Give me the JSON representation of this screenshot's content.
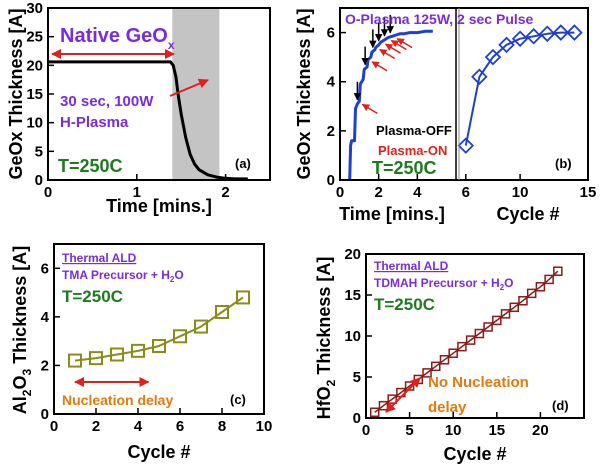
{
  "chart_data": [
    {
      "id": "a",
      "type": "line",
      "panel_label": "(a)",
      "xlabel": "Time [mins.]",
      "ylabel": "GeOx Thickness [A]",
      "xlim": [
        0,
        2.5
      ],
      "ylim": [
        0,
        30
      ],
      "xticks": [
        "0",
        "1",
        "2"
      ],
      "yticks": [
        "0",
        "5",
        "10",
        "15",
        "20",
        "25",
        "30"
      ],
      "shaded_region": [
        1.4,
        1.93
      ],
      "series": [
        {
          "name": "",
          "color": "#000000",
          "x": [
            0,
            0.3,
            0.6,
            0.9,
            1.2,
            1.38,
            1.41,
            1.44,
            1.47,
            1.5,
            1.55,
            1.6,
            1.65,
            1.7,
            1.8,
            1.9,
            2.0,
            2.1,
            2.25
          ],
          "y": [
            20.6,
            20.6,
            20.6,
            20.6,
            20.6,
            20.6,
            20.0,
            18.0,
            14.5,
            11.5,
            7.5,
            4.5,
            2.8,
            1.8,
            0.9,
            0.5,
            0.3,
            0.2,
            0.2
          ]
        }
      ],
      "annotations": {
        "native_main": "Native GeO",
        "native_sub": "x",
        "plasma_line1": "30 sec, 100W",
        "plasma_line2": "H-Plasma",
        "temp": "T=250C"
      }
    },
    {
      "id": "b",
      "type": "line",
      "panel_label": "(b)",
      "title": "O-Plasma 125W, 2 sec Pulse",
      "ylabel": "GeOx Thickness [A]",
      "ylim": [
        0,
        7
      ],
      "yticks": [
        "0",
        "2",
        "4",
        "6"
      ],
      "left": {
        "xlabel": "Time [mins.]",
        "xlim": [
          0,
          6
        ],
        "xticks": [
          "0",
          "2",
          "4",
          "6"
        ],
        "series": [
          {
            "name": "",
            "color": "#1f3fd1",
            "x": [
              0.5,
              0.55,
              0.6,
              0.75,
              0.8,
              0.9,
              1.0,
              1.05,
              1.2,
              1.25,
              1.4,
              1.45,
              1.6,
              1.65,
              1.8,
              1.85,
              2.0,
              2.1,
              2.3,
              2.5,
              2.7,
              2.9,
              3.1,
              3.3,
              3.6,
              4.0,
              4.4,
              4.8
            ],
            "y": [
              0.0,
              1.4,
              1.6,
              1.6,
              2.9,
              3.1,
              3.2,
              3.9,
              4.1,
              4.5,
              4.6,
              4.9,
              5.0,
              5.2,
              5.3,
              5.4,
              5.5,
              5.6,
              5.7,
              5.8,
              5.85,
              5.9,
              5.95,
              5.95,
              6.0,
              6.0,
              6.05,
              6.05
            ]
          }
        ],
        "annotations": {
          "plasma_off": "Plasma-OFF",
          "plasma_on": "Plasma-ON",
          "temp": "T=250C",
          "off_arrow_times": [
            0.9,
            1.3,
            1.7,
            2.0,
            2.3,
            2.6
          ],
          "on_arrow_times": [
            1.0,
            1.5,
            1.9,
            2.2,
            2.5,
            2.8
          ]
        }
      },
      "right": {
        "xlabel": "Cycle #",
        "xlim": [
          5.5,
          15
        ],
        "xticks": [
          "6",
          "10",
          "15"
        ],
        "series": [
          {
            "name": "",
            "color": "#1f3fd1",
            "x": [
              6,
              7,
              8,
              9,
              10,
              11,
              12,
              13,
              14
            ],
            "y": [
              1.4,
              4.2,
              5.0,
              5.5,
              5.75,
              5.85,
              5.95,
              6.0,
              6.0
            ]
          }
        ]
      }
    },
    {
      "id": "c",
      "type": "line",
      "panel_label": "(c)",
      "xlabel": "Cycle #",
      "ylabel_main": "Al",
      "ylabel_sub1": "2",
      "ylabel_mid": "O",
      "ylabel_sub2": "3",
      "ylabel_tail": " Thickness [A]",
      "xlim": [
        0,
        10
      ],
      "ylim": [
        0,
        7
      ],
      "xticks": [
        "0",
        "2",
        "4",
        "6",
        "8",
        "10"
      ],
      "yticks": [
        "0",
        "2",
        "4",
        "6"
      ],
      "series": [
        {
          "name": "",
          "color": "#8b8b1a",
          "x": [
            1,
            2,
            3,
            4,
            5,
            6,
            7,
            8,
            9
          ],
          "y": [
            2.2,
            2.3,
            2.45,
            2.6,
            2.8,
            3.2,
            3.6,
            4.2,
            4.8
          ]
        }
      ],
      "annotations": {
        "label1": "Thermal ALD",
        "label2": "TMA Precursor + H",
        "label2_sub": "2",
        "label2_tail": "O",
        "temp": "T=250C",
        "delay": "Nucleation delay",
        "delay_range": [
          1,
          4.5
        ]
      }
    },
    {
      "id": "d",
      "type": "line",
      "panel_label": "(d)",
      "xlabel": "Cycle #",
      "ylabel_main": "HfO",
      "ylabel_sub": "2",
      "ylabel_tail": " Thickness [A]",
      "xlim": [
        0,
        25
      ],
      "ylim": [
        0,
        20
      ],
      "xticks": [
        "0",
        "5",
        "10",
        "15",
        "20"
      ],
      "yticks": [
        "0",
        "5",
        "10",
        "15",
        "20"
      ],
      "series": [
        {
          "name": "",
          "color": "#8b1a1a",
          "x": [
            1,
            2,
            3,
            4,
            5,
            6,
            7,
            8,
            9,
            10,
            11,
            12,
            13,
            14,
            15,
            16,
            17,
            18,
            19,
            20,
            21,
            22
          ],
          "y": [
            0.7,
            1.5,
            2.3,
            3.1,
            3.9,
            4.7,
            5.5,
            6.3,
            7.1,
            7.9,
            8.7,
            9.5,
            10.3,
            11.1,
            11.9,
            12.7,
            13.5,
            14.3,
            15.2,
            16.0,
            16.9,
            17.9
          ]
        }
      ],
      "annotations": {
        "label1": "Thermal ALD",
        "label2": "TDMAH Precursor + H",
        "label2_sub": "2",
        "label2_tail": "O",
        "temp": "T=250C",
        "nonuc1": "No Nucleation",
        "nonuc2": "delay"
      }
    }
  ],
  "colors": {
    "purple": "#7a2be2",
    "green": "#1f7a1f",
    "orange": "#e8780a",
    "red": "#e0201a",
    "blue": "#1f3fd1",
    "olive": "#8b8b1a",
    "maroon": "#8b1a1a",
    "shade": "#c4c4c4"
  }
}
